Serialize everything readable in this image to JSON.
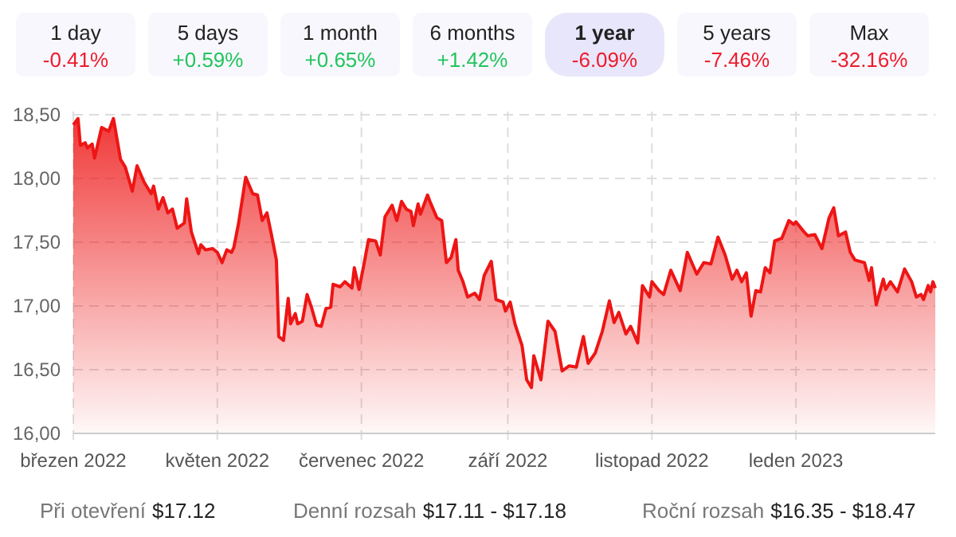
{
  "chart_data": {
    "type": "area",
    "annotations": [
      "1 day",
      "-0.41%",
      "5 days",
      "+0.59%",
      "1 month",
      "+0.65%",
      "6 months",
      "+1.42%",
      "1 year",
      "-6.09%",
      "5 years",
      "-7.46%",
      "Max",
      "-32.16%",
      "Při otevření",
      "$17.12",
      "Denní rozsah",
      "$17.11 - $17.18",
      "Roční rozsah",
      "$16.35 - $18.47"
    ],
    "x": [
      "2022-03-01",
      "2022-03-03",
      "2022-03-04",
      "2022-03-06",
      "2022-03-07",
      "2022-03-09",
      "2022-03-10",
      "2022-03-13",
      "2022-03-16",
      "2022-03-18",
      "2022-03-21",
      "2022-03-23",
      "2022-03-26",
      "2022-03-28",
      "2022-03-31",
      "2022-04-03",
      "2022-04-04",
      "2022-04-06",
      "2022-04-08",
      "2022-04-10",
      "2022-04-12",
      "2022-04-14",
      "2022-04-17",
      "2022-04-18",
      "2022-04-20",
      "2022-04-23",
      "2022-04-24",
      "2022-04-26",
      "2022-04-29",
      "2022-05-01",
      "2022-05-03",
      "2022-05-05",
      "2022-05-07",
      "2022-05-08",
      "2022-05-10",
      "2022-05-13",
      "2022-05-16",
      "2022-05-18",
      "2022-05-20",
      "2022-05-22",
      "2022-05-24",
      "2022-05-26",
      "2022-05-27",
      "2022-05-29",
      "2022-05-31",
      "2022-06-01",
      "2022-06-03",
      "2022-06-04",
      "2022-06-06",
      "2022-06-08",
      "2022-06-10",
      "2022-06-12",
      "2022-06-14",
      "2022-06-16",
      "2022-06-18",
      "2022-06-19",
      "2022-06-22",
      "2022-06-24",
      "2022-06-27",
      "2022-06-28",
      "2022-06-30",
      "2022-07-02",
      "2022-07-04",
      "2022-07-07",
      "2022-07-09",
      "2022-07-11",
      "2022-07-14",
      "2022-07-16",
      "2022-07-18",
      "2022-07-20",
      "2022-07-22",
      "2022-07-23",
      "2022-07-25",
      "2022-07-26",
      "2022-07-29",
      "2022-07-30",
      "2022-08-02",
      "2022-08-04",
      "2022-08-06",
      "2022-08-08",
      "2022-08-10",
      "2022-08-11",
      "2022-08-13",
      "2022-08-15",
      "2022-08-18",
      "2022-08-20",
      "2022-08-22",
      "2022-08-25",
      "2022-08-27",
      "2022-08-30",
      "2022-08-31",
      "2022-09-02",
      "2022-09-04",
      "2022-09-07",
      "2022-09-09",
      "2022-09-11",
      "2022-09-12",
      "2022-09-15",
      "2022-09-18",
      "2022-09-21",
      "2022-09-24",
      "2022-09-27",
      "2022-09-30",
      "2022-10-03",
      "2022-10-05",
      "2022-10-08",
      "2022-10-11",
      "2022-10-14",
      "2022-10-16",
      "2022-10-18",
      "2022-10-21",
      "2022-10-23",
      "2022-10-26",
      "2022-10-28",
      "2022-10-31",
      "2022-11-01",
      "2022-11-04",
      "2022-11-06",
      "2022-11-09",
      "2022-11-13",
      "2022-11-16",
      "2022-11-20",
      "2022-11-23",
      "2022-11-26",
      "2022-11-29",
      "2022-12-02",
      "2022-12-05",
      "2022-12-07",
      "2022-12-09",
      "2022-12-11",
      "2022-12-13",
      "2022-12-15",
      "2022-12-17",
      "2022-12-19",
      "2022-12-21",
      "2022-12-23",
      "2022-12-26",
      "2022-12-29",
      "2022-12-31",
      "2023-01-01",
      "2023-01-04",
      "2023-01-06",
      "2023-01-09",
      "2023-01-12",
      "2023-01-15",
      "2023-01-17",
      "2023-01-19",
      "2023-01-22",
      "2023-01-24",
      "2023-01-26",
      "2023-01-30",
      "2023-02-01",
      "2023-02-02",
      "2023-02-04",
      "2023-02-07",
      "2023-02-08",
      "2023-02-10",
      "2023-02-13",
      "2023-02-16",
      "2023-02-19",
      "2023-02-21",
      "2023-02-23",
      "2023-02-24",
      "2023-02-26",
      "2023-02-27",
      "2023-02-28",
      "2023-03-01"
    ],
    "series": [
      {
        "color": "#ee1515",
        "values": [
          18.42,
          18.47,
          18.26,
          18.28,
          18.24,
          18.27,
          18.16,
          18.4,
          18.37,
          18.47,
          18.15,
          18.09,
          17.9,
          18.1,
          17.97,
          17.88,
          17.94,
          17.76,
          17.85,
          17.73,
          17.76,
          17.61,
          17.65,
          17.84,
          17.58,
          17.41,
          17.48,
          17.44,
          17.45,
          17.42,
          17.34,
          17.44,
          17.42,
          17.46,
          17.65,
          18.01,
          17.88,
          17.87,
          17.67,
          17.73,
          17.55,
          17.36,
          16.76,
          16.73,
          17.06,
          16.86,
          16.94,
          16.86,
          16.88,
          17.09,
          16.98,
          16.85,
          16.84,
          16.98,
          16.99,
          17.17,
          17.15,
          17.19,
          17.14,
          17.3,
          17.13,
          17.32,
          17.52,
          17.51,
          17.4,
          17.7,
          17.79,
          17.67,
          17.82,
          17.76,
          17.74,
          17.63,
          17.8,
          17.72,
          17.87,
          17.82,
          17.69,
          17.67,
          17.34,
          17.38,
          17.52,
          17.28,
          17.19,
          17.07,
          17.1,
          17.05,
          17.24,
          17.35,
          17.05,
          17.03,
          16.96,
          17.03,
          16.86,
          16.69,
          16.42,
          16.36,
          16.61,
          16.42,
          16.88,
          16.8,
          16.49,
          16.53,
          16.52,
          16.76,
          16.55,
          16.63,
          16.8,
          17.04,
          16.87,
          16.95,
          16.78,
          16.84,
          16.71,
          17.16,
          17.07,
          17.19,
          17.12,
          17.09,
          17.28,
          17.12,
          17.42,
          17.25,
          17.34,
          17.33,
          17.54,
          17.4,
          17.21,
          17.28,
          17.19,
          17.26,
          16.92,
          17.12,
          17.11,
          17.3,
          17.26,
          17.51,
          17.53,
          17.67,
          17.64,
          17.66,
          17.59,
          17.55,
          17.56,
          17.45,
          17.69,
          17.77,
          17.55,
          17.58,
          17.42,
          17.36,
          17.34,
          17.2,
          17.3,
          17.01,
          17.21,
          17.13,
          17.19,
          17.11,
          17.29,
          17.19,
          17.07,
          17.09,
          17.05,
          17.16,
          17.11,
          17.19,
          17.14
        ]
      }
    ],
    "xlim": [
      "2022-03-01",
      "2023-03-01"
    ],
    "xticks": [
      {
        "value": "2022-03-01",
        "label": "březen 2022"
      },
      {
        "value": "2022-05-01",
        "label": "květen 2022"
      },
      {
        "value": "2022-07-01",
        "label": "červenec 2022"
      },
      {
        "value": "2022-09-01",
        "label": "září 2022"
      },
      {
        "value": "2022-11-01",
        "label": "listopad 2022"
      },
      {
        "value": "2023-01-01",
        "label": "leden 2023"
      }
    ],
    "ylim": [
      16,
      18.5
    ],
    "yticks": [
      {
        "value": 16,
        "label": "16,00"
      },
      {
        "value": 16.5,
        "label": "16,50"
      },
      {
        "value": 17,
        "label": "17,00"
      },
      {
        "value": 17.5,
        "label": "17,50"
      },
      {
        "value": 18,
        "label": "18,00"
      },
      {
        "value": 18.5,
        "label": "18,50"
      }
    ],
    "grid": true
  }
}
